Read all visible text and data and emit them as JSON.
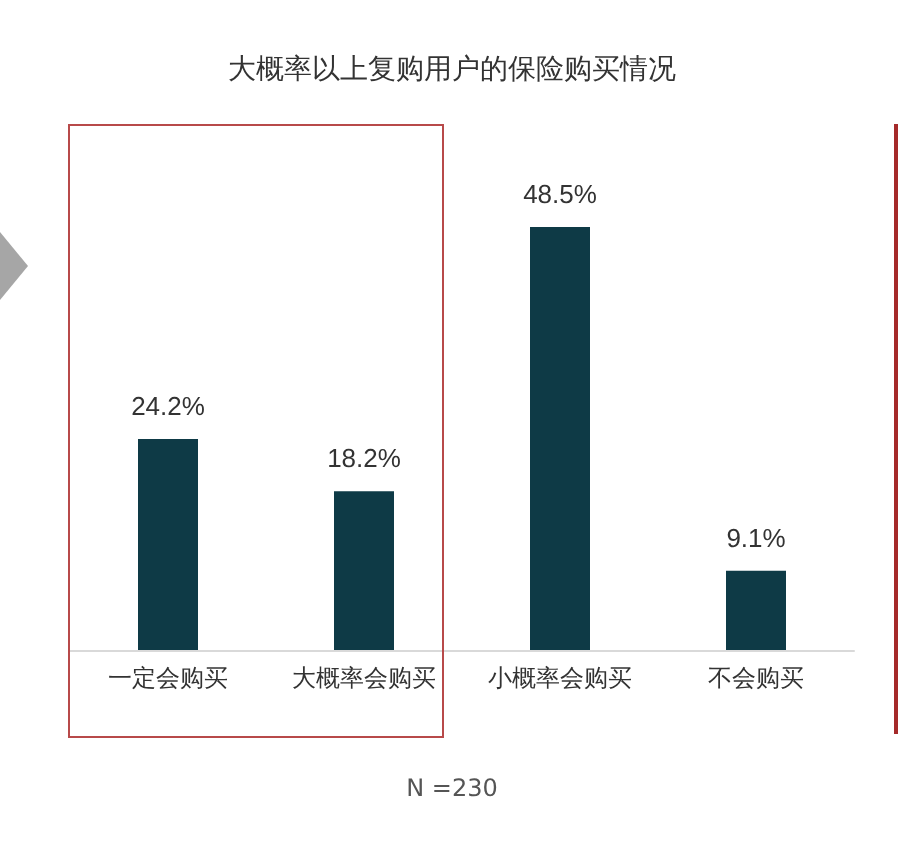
{
  "chart_data": {
    "type": "bar",
    "title": "大概率以上复购用户的保险购买情况",
    "categories": [
      "一定会购买",
      "大概率会购买",
      "小概率会购买",
      "不会购买"
    ],
    "values": [
      24.2,
      18.2,
      48.5,
      9.1
    ],
    "value_labels": [
      "24.2%",
      "18.2%",
      "48.5%",
      "9.1%"
    ],
    "color": "#0e3a46",
    "annotations": [
      "N =230"
    ]
  }
}
